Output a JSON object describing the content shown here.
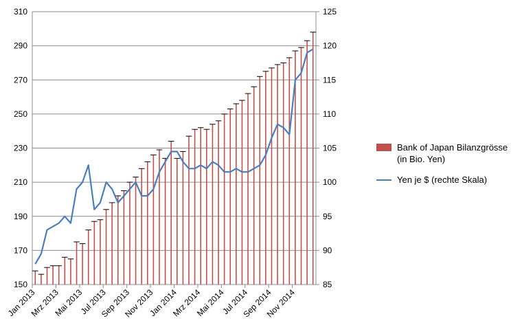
{
  "chart_data": {
    "type": "bar-line",
    "categories": [
      "Jan 2013",
      null,
      null,
      null,
      "Mrz 2013",
      null,
      null,
      null,
      "Mai 2013",
      null,
      null,
      null,
      "Jul 2013",
      null,
      null,
      null,
      "Sep 2013",
      null,
      null,
      null,
      "Nov 2013",
      null,
      null,
      null,
      "Jan 2014",
      null,
      null,
      null,
      "Mrz 2014",
      null,
      null,
      null,
      "Mai 2014",
      null,
      null,
      null,
      "Jul 2014",
      null,
      null,
      null,
      "Sep 2014",
      null,
      null,
      null,
      "Nov 2014",
      null,
      null,
      null
    ],
    "series": [
      {
        "name": "Bank of Japan Bilanzgrösse (in Bio. Yen)",
        "color": "#c0504d",
        "type": "bar",
        "values": [
          158,
          156,
          160,
          161,
          161,
          166,
          165,
          175,
          174,
          182,
          187,
          188,
          194,
          198,
          202,
          205,
          210,
          213,
          218,
          222,
          226,
          229,
          224,
          234,
          224,
          228,
          237,
          241,
          242,
          241,
          244,
          246,
          250,
          253,
          256,
          258,
          262,
          266,
          272,
          275,
          277,
          279,
          280,
          283,
          287,
          289,
          293,
          298
        ]
      },
      {
        "name": "Yen je $ (rechte Skala)",
        "color": "#4a7ebb",
        "type": "line",
        "axis": "y2",
        "values": [
          88,
          89.5,
          93,
          93.5,
          94,
          95,
          94,
          99,
          100,
          102.5,
          96,
          97,
          100,
          99,
          97,
          98,
          99,
          100,
          98,
          98,
          99,
          101.5,
          103,
          104.5,
          104.5,
          103,
          102,
          102,
          102.5,
          102,
          103,
          102.5,
          101.5,
          101.5,
          102,
          101.5,
          101.5,
          102,
          102.5,
          104,
          106.5,
          108.5,
          108,
          107,
          115,
          116,
          119,
          119.5
        ]
      }
    ],
    "ylim": [
      150,
      310
    ],
    "yticks": [
      150,
      170,
      190,
      210,
      230,
      250,
      270,
      290,
      310
    ],
    "y2lim": [
      85,
      125
    ],
    "y2ticks": [
      85,
      90,
      95,
      100,
      105,
      110,
      115,
      120,
      125
    ],
    "grid": true,
    "legend": "right"
  }
}
